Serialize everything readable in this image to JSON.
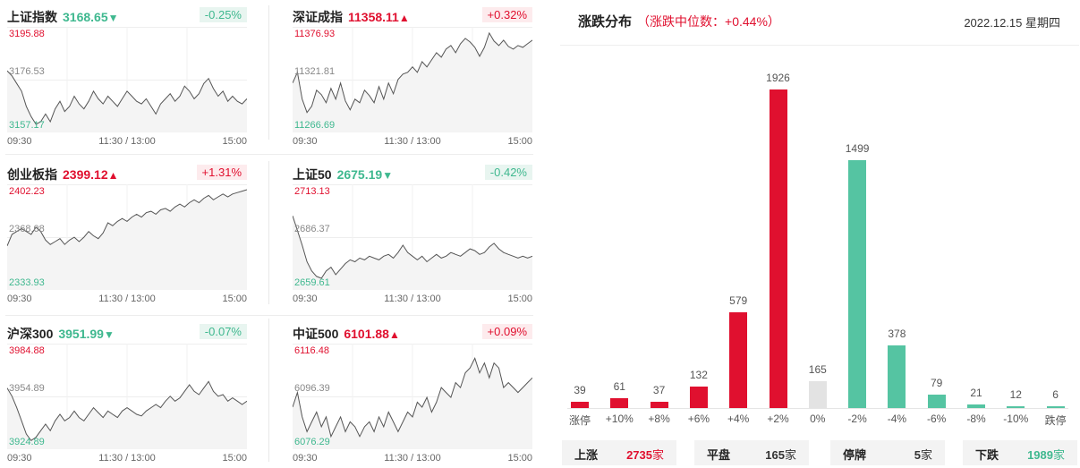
{
  "indices": [
    {
      "name": "上证指数",
      "value": "3168.65",
      "arrow": "▼",
      "dir": "down",
      "pct": "-0.25%",
      "high": "3195.88",
      "mid": "3176.53",
      "low": "3157.17",
      "x_ticks": [
        "09:30",
        "11:30 / 13:00",
        "15:00"
      ],
      "series": [
        3180,
        3178,
        3175,
        3172,
        3166,
        3162,
        3159,
        3160,
        3163,
        3160,
        3165,
        3168,
        3164,
        3166,
        3170,
        3167,
        3165,
        3168,
        3172,
        3169,
        3167,
        3170,
        3168,
        3166,
        3169,
        3172,
        3170,
        3168,
        3167,
        3169,
        3166,
        3163,
        3167,
        3169,
        3171,
        3168,
        3170,
        3174,
        3172,
        3169,
        3171,
        3175,
        3177,
        3173,
        3170,
        3172,
        3168,
        3170,
        3168,
        3167,
        3169
      ]
    },
    {
      "name": "深证成指",
      "value": "11358.11",
      "arrow": "▲",
      "dir": "up",
      "pct": "+0.32%",
      "high": "11376.93",
      "mid": "11321.81",
      "low": "11266.69",
      "x_ticks": [
        "09:30",
        "11:30 / 13:00",
        "15:00"
      ],
      "series": [
        11318,
        11330,
        11300,
        11285,
        11292,
        11310,
        11305,
        11296,
        11312,
        11300,
        11318,
        11298,
        11288,
        11300,
        11296,
        11310,
        11304,
        11296,
        11314,
        11300,
        11318,
        11306,
        11322,
        11328,
        11330,
        11336,
        11330,
        11342,
        11336,
        11344,
        11352,
        11347,
        11356,
        11360,
        11352,
        11362,
        11368,
        11364,
        11358,
        11348,
        11358,
        11374,
        11365,
        11360,
        11366,
        11359,
        11356,
        11360,
        11358,
        11362,
        11366
      ]
    },
    {
      "name": "创业板指",
      "value": "2399.12",
      "arrow": "▲",
      "dir": "up",
      "pct": "+1.31%",
      "high": "2402.23",
      "mid": "2368.08",
      "low": "2333.93",
      "x_ticks": [
        "09:30",
        "11:30 / 13:00",
        "15:00"
      ],
      "series": [
        2362,
        2370,
        2372,
        2374,
        2372,
        2370,
        2375,
        2372,
        2366,
        2363,
        2365,
        2367,
        2363,
        2366,
        2368,
        2365,
        2368,
        2372,
        2369,
        2367,
        2371,
        2378,
        2376,
        2379,
        2381,
        2379,
        2382,
        2384,
        2382,
        2385,
        2386,
        2384,
        2387,
        2388,
        2386,
        2389,
        2391,
        2389,
        2392,
        2394,
        2392,
        2395,
        2397,
        2394,
        2396,
        2398,
        2396,
        2398,
        2399,
        2400,
        2401
      ]
    },
    {
      "name": "上证50",
      "value": "2675.19",
      "arrow": "▼",
      "dir": "down",
      "pct": "-0.42%",
      "high": "2713.13",
      "mid": "2686.37",
      "low": "2659.61",
      "x_ticks": [
        "09:30",
        "11:30 / 13:00",
        "15:00"
      ],
      "series": [
        2698,
        2690,
        2682,
        2673,
        2668,
        2665,
        2664,
        2668,
        2670,
        2666,
        2669,
        2672,
        2674,
        2673,
        2675,
        2674,
        2676,
        2675,
        2674,
        2676,
        2677,
        2675,
        2678,
        2682,
        2678,
        2676,
        2674,
        2676,
        2673,
        2675,
        2677,
        2675,
        2676,
        2678,
        2677,
        2676,
        2678,
        2680,
        2679,
        2677,
        2678,
        2681,
        2683,
        2680,
        2678,
        2677,
        2676,
        2675,
        2676,
        2675,
        2676
      ]
    },
    {
      "name": "沪深300",
      "value": "3951.99",
      "arrow": "▼",
      "dir": "down",
      "pct": "-0.07%",
      "high": "3984.88",
      "mid": "3954.89",
      "low": "3924.89",
      "x_ticks": [
        "09:30",
        "11:30 / 13:00",
        "15:00"
      ],
      "series": [
        3960,
        3955,
        3948,
        3940,
        3932,
        3928,
        3930,
        3934,
        3938,
        3934,
        3940,
        3944,
        3940,
        3942,
        3946,
        3942,
        3940,
        3944,
        3948,
        3945,
        3942,
        3946,
        3944,
        3942,
        3946,
        3948,
        3946,
        3944,
        3943,
        3946,
        3948,
        3950,
        3948,
        3952,
        3955,
        3952,
        3954,
        3958,
        3962,
        3958,
        3956,
        3960,
        3964,
        3958,
        3955,
        3956,
        3952,
        3954,
        3952,
        3950,
        3952
      ]
    },
    {
      "name": "中证500",
      "value": "6101.88",
      "arrow": "▲",
      "dir": "up",
      "pct": "+0.09%",
      "high": "6116.48",
      "mid": "6096.39",
      "low": "6076.29",
      "x_ticks": [
        "09:30",
        "11:30 / 13:00",
        "15:00"
      ],
      "series": [
        6092,
        6098,
        6088,
        6082,
        6086,
        6090,
        6084,
        6088,
        6080,
        6084,
        6088,
        6082,
        6086,
        6084,
        6080,
        6084,
        6086,
        6082,
        6088,
        6084,
        6090,
        6086,
        6082,
        6086,
        6090,
        6088,
        6094,
        6092,
        6096,
        6090,
        6094,
        6100,
        6098,
        6096,
        6102,
        6100,
        6106,
        6108,
        6112,
        6106,
        6110,
        6104,
        6110,
        6108,
        6100,
        6102,
        6100,
        6098,
        6100,
        6102,
        6104
      ]
    }
  ],
  "distribution": {
    "title": "涨跌分布",
    "subtitle": "（涨跌中位数：+0.44%）",
    "date": "2022.12.15 星期四",
    "chart_data": {
      "type": "bar",
      "categories": [
        "涨停",
        "+10%",
        "+8%",
        "+6%",
        "+4%",
        "+2%",
        "0%",
        "-2%",
        "-4%",
        "-6%",
        "-8%",
        "-10%",
        "跌停"
      ],
      "values": [
        39,
        61,
        37,
        132,
        579,
        1926,
        165,
        1499,
        378,
        79,
        21,
        12,
        6
      ],
      "value_labels": [
        "39",
        "61",
        "37",
        "132",
        "579",
        "1926",
        "165",
        "1499",
        "378",
        "79",
        "21",
        "12",
        "6"
      ],
      "colors": [
        "#e0102f",
        "#e0102f",
        "#e0102f",
        "#e0102f",
        "#e0102f",
        "#e0102f",
        "#e3e3e3",
        "#55c4a2",
        "#55c4a2",
        "#55c4a2",
        "#55c4a2",
        "#55c4a2",
        "#55c4a2"
      ],
      "ylim": [
        0,
        1926
      ]
    },
    "summary": [
      {
        "label": "上涨",
        "num": "2735",
        "unit": "家",
        "color": "#e0102f"
      },
      {
        "label": "平盘",
        "num": "165",
        "unit": "家",
        "color": "#333333"
      },
      {
        "label": "停牌",
        "num": "5",
        "unit": "家",
        "color": "#333333"
      },
      {
        "label": "下跌",
        "num": "1989",
        "unit": "家",
        "color": "#3fb88f"
      }
    ]
  }
}
